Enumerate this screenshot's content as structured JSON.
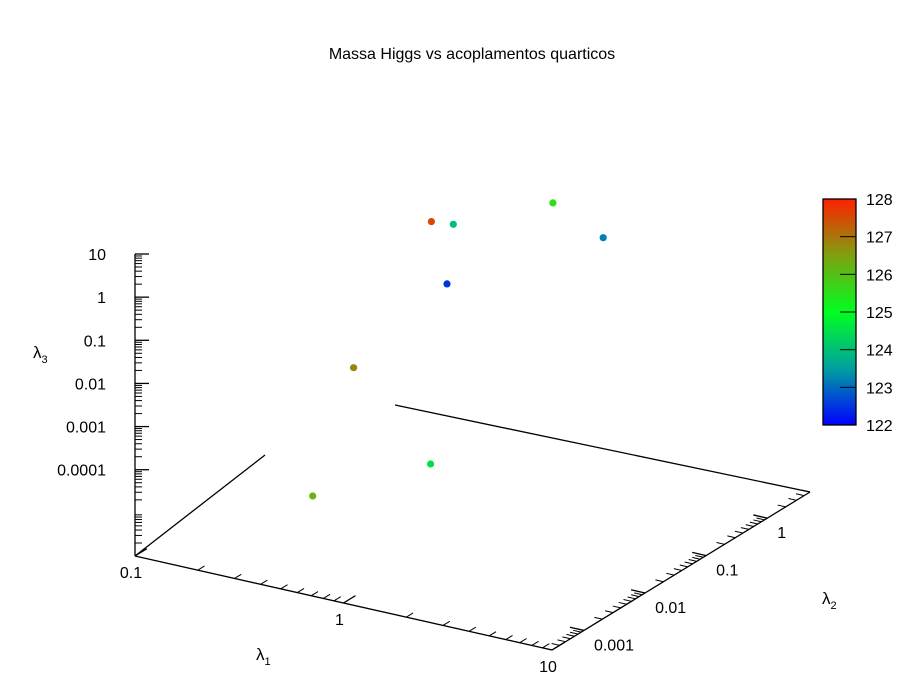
{
  "chart_data": {
    "type": "scatter",
    "title": "Massa Higgs vs acoplamentos quarticos",
    "xlabel": {
      "main": "λ",
      "sub": "1"
    },
    "ylabel": {
      "main": "λ",
      "sub": "2"
    },
    "zlabel": {
      "main": "λ",
      "sub": "3"
    },
    "x_scale": "log",
    "y_scale": "log",
    "z_scale": "log",
    "xlim": [
      0.1,
      10
    ],
    "ylim": [
      0.0003,
      5
    ],
    "zlim": [
      1e-06,
      10
    ],
    "x_ticks": [
      "0.1",
      "1",
      "10"
    ],
    "y_ticks": [
      "0.001",
      "0.01",
      "0.1",
      "1"
    ],
    "z_ticks": [
      "10",
      "1",
      "0.1",
      "0.01",
      "0.001",
      "0.0001"
    ],
    "colorbar": {
      "min": 122,
      "max": 128,
      "ticks": [
        "128",
        "127",
        "126",
        "125",
        "124",
        "123",
        "122"
      ],
      "palette": [
        "#0000ff",
        "#00a0a0",
        "#00ff20",
        "#80a010",
        "#ff2000"
      ]
    },
    "grid": false,
    "legend": "none",
    "series": [
      {
        "points": [
          [
            0.5,
            0.2,
            1.0,
            124.0
          ],
          [
            0.5,
            0.001,
            5e-05,
            126.2
          ],
          [
            0.3,
            0.5,
            0.3,
            127.5
          ],
          [
            0.7,
            0.05,
            0.2,
            122.5
          ],
          [
            1.0,
            0.8,
            2.0,
            125.5
          ],
          [
            2.0,
            0.5,
            1.0,
            123.2
          ],
          [
            0.4,
            0.01,
            0.005,
            126.8
          ],
          [
            1.5,
            0.002,
            0.0005,
            124.5
          ]
        ]
      }
    ]
  }
}
